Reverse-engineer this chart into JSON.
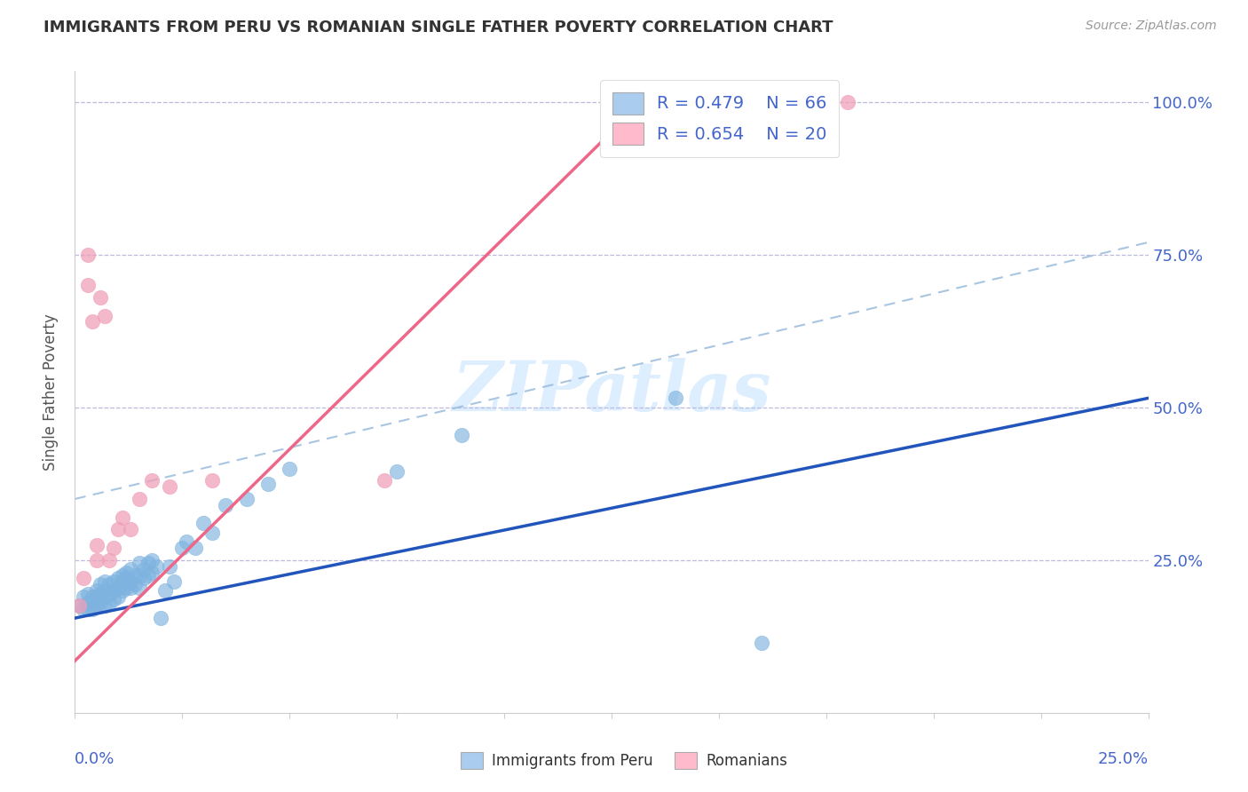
{
  "title": "IMMIGRANTS FROM PERU VS ROMANIAN SINGLE FATHER POVERTY CORRELATION CHART",
  "source": "Source: ZipAtlas.com",
  "ylabel": "Single Father Poverty",
  "xlim": [
    0.0,
    0.25
  ],
  "ylim": [
    0.0,
    1.05
  ],
  "y_ticks": [
    0.0,
    0.25,
    0.5,
    0.75,
    1.0
  ],
  "y_tick_labels": [
    "",
    "25.0%",
    "50.0%",
    "75.0%",
    "100.0%"
  ],
  "legend_r1": "R = 0.479",
  "legend_n1": "N = 66",
  "legend_r2": "R = 0.654",
  "legend_n2": "N = 20",
  "legend_label1": "Immigrants from Peru",
  "legend_label2": "Romanians",
  "blue_scatter_color": "#7EB3E0",
  "pink_scatter_color": "#F0A0B8",
  "blue_line_color": "#2255BB",
  "pink_line_color": "#EE6688",
  "dash_line_color": "#99BBDD",
  "text_color": "#4466CC",
  "title_color": "#333333",
  "watermark_text": "ZIPatlas",
  "watermark_color": "#DDEEFF",
  "background_color": "#FFFFFF",
  "grid_color": "#BBBBDD",
  "blue_line_x": [
    0.0,
    0.25
  ],
  "blue_line_y": [
    0.155,
    0.515
  ],
  "pink_line_x": [
    0.0,
    0.135
  ],
  "pink_line_y": [
    0.085,
    1.02
  ],
  "dash_line_x": [
    0.0,
    0.25
  ],
  "dash_line_y": [
    0.35,
    0.77
  ],
  "peru_x": [
    0.001,
    0.002,
    0.002,
    0.003,
    0.003,
    0.003,
    0.004,
    0.004,
    0.005,
    0.005,
    0.005,
    0.005,
    0.006,
    0.006,
    0.006,
    0.007,
    0.007,
    0.007,
    0.007,
    0.008,
    0.008,
    0.008,
    0.009,
    0.009,
    0.009,
    0.01,
    0.01,
    0.01,
    0.011,
    0.011,
    0.011,
    0.012,
    0.012,
    0.012,
    0.013,
    0.013,
    0.013,
    0.014,
    0.014,
    0.015,
    0.015,
    0.015,
    0.016,
    0.016,
    0.017,
    0.017,
    0.018,
    0.018,
    0.019,
    0.02,
    0.021,
    0.022,
    0.023,
    0.025,
    0.026,
    0.028,
    0.03,
    0.032,
    0.035,
    0.04,
    0.045,
    0.05,
    0.075,
    0.09,
    0.14,
    0.16
  ],
  "peru_y": [
    0.175,
    0.17,
    0.19,
    0.17,
    0.195,
    0.18,
    0.17,
    0.19,
    0.18,
    0.175,
    0.19,
    0.2,
    0.18,
    0.195,
    0.21,
    0.175,
    0.19,
    0.2,
    0.215,
    0.18,
    0.195,
    0.21,
    0.185,
    0.2,
    0.215,
    0.19,
    0.205,
    0.22,
    0.2,
    0.215,
    0.225,
    0.205,
    0.22,
    0.23,
    0.205,
    0.215,
    0.235,
    0.21,
    0.225,
    0.205,
    0.225,
    0.245,
    0.22,
    0.235,
    0.225,
    0.245,
    0.23,
    0.25,
    0.24,
    0.155,
    0.2,
    0.24,
    0.215,
    0.27,
    0.28,
    0.27,
    0.31,
    0.295,
    0.34,
    0.35,
    0.375,
    0.4,
    0.395,
    0.455,
    0.515,
    0.115
  ],
  "romanian_x": [
    0.001,
    0.002,
    0.003,
    0.003,
    0.004,
    0.005,
    0.005,
    0.006,
    0.007,
    0.008,
    0.009,
    0.01,
    0.011,
    0.013,
    0.015,
    0.018,
    0.022,
    0.032,
    0.072,
    0.18
  ],
  "romanian_y": [
    0.175,
    0.22,
    0.7,
    0.75,
    0.64,
    0.25,
    0.275,
    0.68,
    0.65,
    0.25,
    0.27,
    0.3,
    0.32,
    0.3,
    0.35,
    0.38,
    0.37,
    0.38,
    0.38,
    1.0
  ]
}
